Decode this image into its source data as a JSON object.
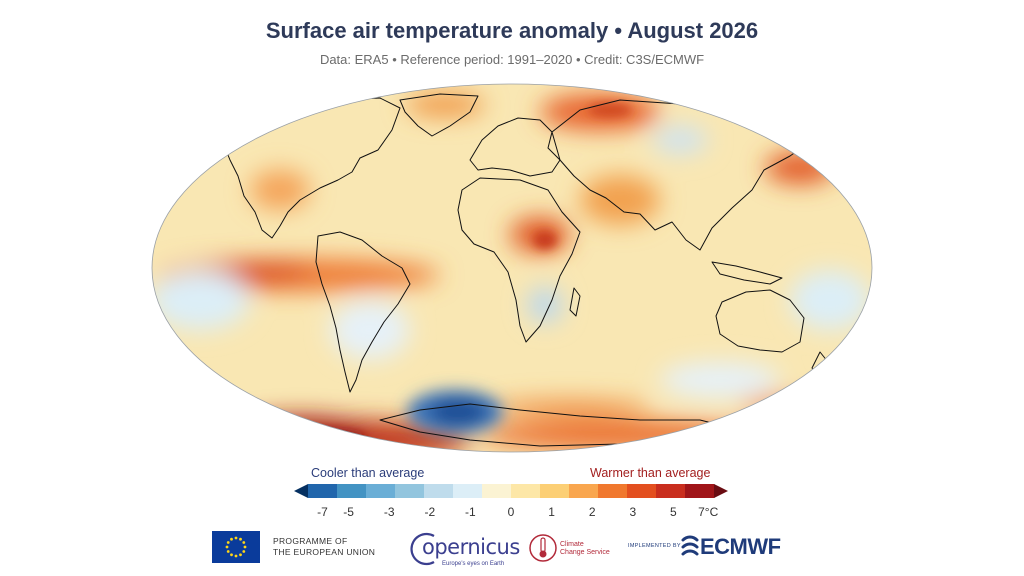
{
  "header": {
    "title": "Surface air temperature anomaly • August 2026",
    "subtitle": "Data: ERA5 • Reference period: 1991–2020 • Credit: C3S/ECMWF"
  },
  "legend": {
    "cool_label": "Cooler than average",
    "warm_label": "Warmer than average",
    "ticks": [
      "-7",
      "-5",
      "-3",
      "-2",
      "-1",
      "0",
      "1",
      "2",
      "3",
      "5",
      "7°C"
    ],
    "colors": [
      "#053061",
      "#2166ac",
      "#4393c3",
      "#6aaed6",
      "#92c5de",
      "#bfdcec",
      "#dceef7",
      "#fbf3d3",
      "#fde7a7",
      "#fccf75",
      "#f9a64e",
      "#f0782e",
      "#e34f1f",
      "#c92e1e",
      "#a01519",
      "#6a0c12"
    ]
  },
  "map": {
    "projection": "robinson",
    "base_color": "#f9e7b3",
    "coastline_color": "#111111"
  },
  "footer": {
    "eu_line1": "PROGRAMME OF",
    "eu_line2": "THE EUROPEAN UNION",
    "copernicus_word": "opernicus",
    "copernicus_sub": "Europe's eyes on Earth",
    "c3s_line1": "Climate",
    "c3s_line2": "Change Service",
    "implemented_by": "IMPLEMENTED BY",
    "ecmwf_word": "ECMWF"
  }
}
